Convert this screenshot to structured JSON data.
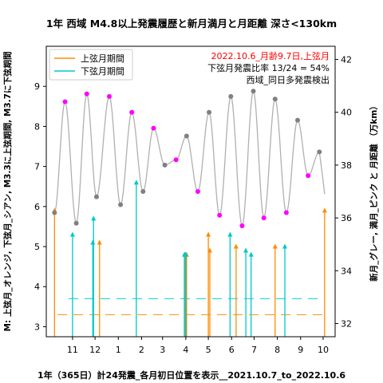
{
  "chart_data": {
    "type": "scatter",
    "title": "1年 西域 M4.8以上発震履歴と新月満月と月距離 深さ<130km",
    "xlabel": "1年（365日）計24発震_各月初日位置を表示__2021.10.7_to_2022.10.6",
    "ylabel_left": "M: 上弦月_オレンジ, 下弦月_シアン,  M3.3に上弦期間, M3.7に下弦期間",
    "ylabel_right": "新月_グレー, 満月_ピンク と 月距離 （万km）",
    "x_tick_labels": [
      "11",
      "12",
      "1",
      "2",
      "3",
      "4",
      "5",
      "6",
      "7",
      "8",
      "9",
      "10"
    ],
    "x_tick_days": [
      25,
      55,
      86,
      117,
      145,
      176,
      206,
      237,
      267,
      298,
      329,
      359
    ],
    "xlim": [
      -10,
      375
    ],
    "ylim_left": [
      2.75,
      10
    ],
    "y_left_ticks": [
      3,
      4,
      5,
      6,
      7,
      8,
      9
    ],
    "ylim_right": [
      31.5,
      42.5
    ],
    "y_right_ticks": [
      32,
      34,
      36,
      38,
      40,
      42
    ],
    "colors": {
      "first_quarter": "#ff8c00",
      "last_quarter": "#00c8c8",
      "new_moon": "#808080",
      "full_moon": "#ff00ff",
      "distance": "#b0b0b0"
    },
    "legend": {
      "placement": "top-left",
      "items": [
        {
          "label": "上弦月期間",
          "color": "#ff8c00"
        },
        {
          "label": "下弦月期間",
          "color": "#00c8c8"
        }
      ]
    },
    "annotations": {
      "date_line": "2022.10.6_月齢9.7日,上弦月",
      "ratio_line": "下弦月発震比率 13/24 = 54%",
      "note_line": "西域_同日多発震検出"
    },
    "period_lines": {
      "first_quarter_m": 3.3,
      "last_quarter_m": 3.7
    },
    "quakes_first_quarter": [
      {
        "day": 1,
        "m": 5.9
      },
      {
        "day": 61,
        "m": 5.1
      },
      {
        "day": 175,
        "m": 4.8
      },
      {
        "day": 177,
        "m": 4.8
      },
      {
        "day": 206,
        "m": 5.3
      },
      {
        "day": 208,
        "m": 4.9
      },
      {
        "day": 243,
        "m": 5.0
      },
      {
        "day": 295,
        "m": 5.0
      },
      {
        "day": 361,
        "m": 5.9
      }
    ],
    "quakes_last_quarter": [
      {
        "day": 25,
        "m": 5.3
      },
      {
        "day": 52,
        "m": 5.1
      },
      {
        "day": 53,
        "m": 5.7
      },
      {
        "day": 110,
        "m": 6.6
      },
      {
        "day": 174,
        "m": 4.8
      },
      {
        "day": 176,
        "m": 4.8
      },
      {
        "day": 235,
        "m": 5.3
      },
      {
        "day": 256,
        "m": 4.9
      },
      {
        "day": 263,
        "m": 4.8
      },
      {
        "day": 308,
        "m": 5.0
      }
    ],
    "new_moon_points": [
      {
        "day": 1,
        "km": 36.2
      },
      {
        "day": 30,
        "km": 35.8
      },
      {
        "day": 57,
        "km": 36.8
      },
      {
        "day": 89,
        "km": 36.5
      },
      {
        "day": 119,
        "km": 37.0
      },
      {
        "day": 148,
        "km": 38.0
      },
      {
        "day": 177,
        "km": 39.1
      },
      {
        "day": 207,
        "km": 40.0
      },
      {
        "day": 236,
        "km": 40.6
      },
      {
        "day": 266,
        "km": 40.8
      },
      {
        "day": 295,
        "km": 40.5
      },
      {
        "day": 325,
        "km": 39.7
      },
      {
        "day": 354,
        "km": 38.5
      }
    ],
    "full_moon_points": [
      {
        "day": 15,
        "km": 40.4
      },
      {
        "day": 44,
        "km": 40.7
      },
      {
        "day": 74,
        "km": 40.6
      },
      {
        "day": 104,
        "km": 40.0
      },
      {
        "day": 133,
        "km": 39.4
      },
      {
        "day": 163,
        "km": 38.2
      },
      {
        "day": 192,
        "km": 37.0
      },
      {
        "day": 221,
        "km": 36.1
      },
      {
        "day": 251,
        "km": 35.7
      },
      {
        "day": 280,
        "km": 36.0
      },
      {
        "day": 310,
        "km": 36.2
      },
      {
        "day": 339,
        "km": 37.6
      }
    ]
  }
}
